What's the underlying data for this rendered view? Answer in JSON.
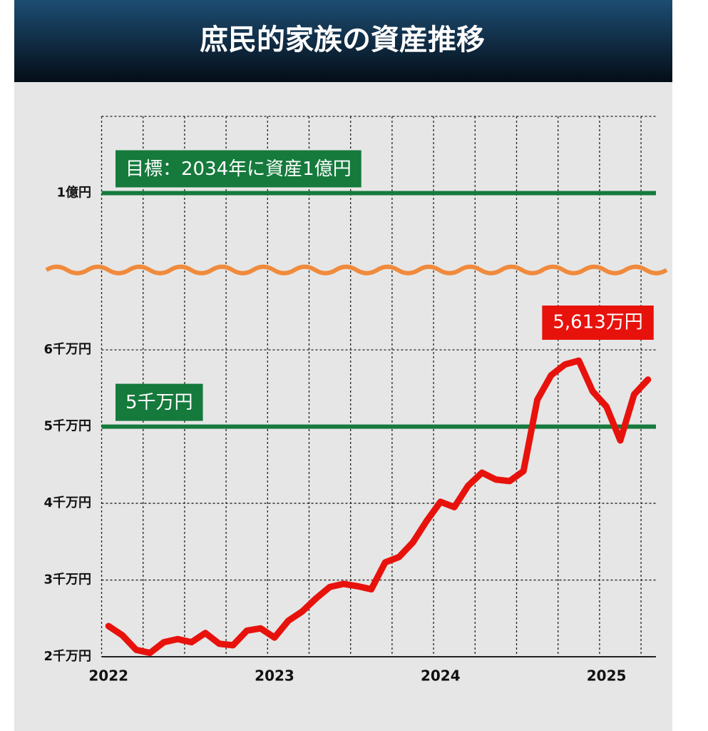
{
  "chart_data": {
    "type": "line",
    "title": "庶民的家族の資産推移",
    "categories": [
      "2022",
      null,
      null,
      null,
      null,
      null,
      null,
      null,
      null,
      null,
      null,
      null,
      "2023",
      null,
      null,
      null,
      null,
      null,
      null,
      null,
      null,
      null,
      null,
      null,
      "2024",
      null,
      null,
      null,
      null,
      null,
      null,
      null,
      null,
      null,
      null,
      null,
      "2025",
      null,
      null,
      null
    ],
    "series": [
      {
        "color": "#e8120c",
        "values": [
          2400,
          2280,
          2090,
          2050,
          2190,
          2230,
          2190,
          2310,
          2170,
          2150,
          2340,
          2370,
          2250,
          2470,
          2590,
          2760,
          2910,
          2950,
          2920,
          2880,
          3230,
          3300,
          3490,
          3770,
          4020,
          3950,
          4230,
          4400,
          4310,
          4290,
          4420,
          5350,
          5670,
          5810,
          5860,
          5460,
          5260,
          4820,
          5420,
          5613
        ],
        "value_labels": [
          null,
          null,
          null,
          null,
          null,
          null,
          null,
          null,
          null,
          null,
          null,
          null,
          null,
          null,
          null,
          null,
          null,
          null,
          null,
          null,
          null,
          null,
          null,
          null,
          null,
          null,
          null,
          null,
          null,
          null,
          null,
          null,
          null,
          null,
          null,
          null,
          null,
          null,
          null,
          "5,613万円"
        ]
      }
    ],
    "ylim": [
      2000,
      11000
    ],
    "y_break": [
      6800,
      9500
    ],
    "yticks": [
      {
        "value": 2000,
        "label": "2千万円"
      },
      {
        "value": 3000,
        "label": "3千万円"
      },
      {
        "value": 4000,
        "label": "4千万円"
      },
      {
        "value": 5000,
        "label": "5千万円"
      },
      {
        "value": 6000,
        "label": "6千万円"
      },
      {
        "value": 10000,
        "label": "1億円"
      }
    ],
    "reference_lines": [
      {
        "value": 10000,
        "label": "目標：2034年に資産1億円",
        "color": "#157a3c"
      },
      {
        "value": 5000,
        "label": "5千万円",
        "color": "#157a3c"
      }
    ],
    "grid": true
  }
}
